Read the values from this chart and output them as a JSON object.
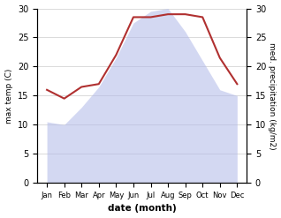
{
  "months": [
    "Jan",
    "Feb",
    "Mar",
    "Apr",
    "May",
    "Jun",
    "Jul",
    "Aug",
    "Sep",
    "Oct",
    "Nov",
    "Dec"
  ],
  "max_temp": [
    10.5,
    10.0,
    13.0,
    16.5,
    21.5,
    27.5,
    29.5,
    30.0,
    26.0,
    21.0,
    16.0,
    15.0
  ],
  "precipitation": [
    16.0,
    14.5,
    16.5,
    17.0,
    22.0,
    28.5,
    28.5,
    29.0,
    29.0,
    28.5,
    21.5,
    17.0
  ],
  "temp_color": "#b03030",
  "precip_fill_color": "#b0b8e8",
  "precip_fill_alpha": 0.55,
  "ylim_left": [
    0,
    30
  ],
  "ylim_right": [
    0,
    30
  ],
  "yticks_left": [
    0,
    5,
    10,
    15,
    20,
    25,
    30
  ],
  "yticks_right": [
    0,
    5,
    10,
    15,
    20,
    25,
    30
  ],
  "xlabel": "date (month)",
  "ylabel_left": "max temp (C)",
  "ylabel_right": "med. precipitation (kg/m2)",
  "background_color": "#ffffff",
  "grid_color": "#cccccc"
}
